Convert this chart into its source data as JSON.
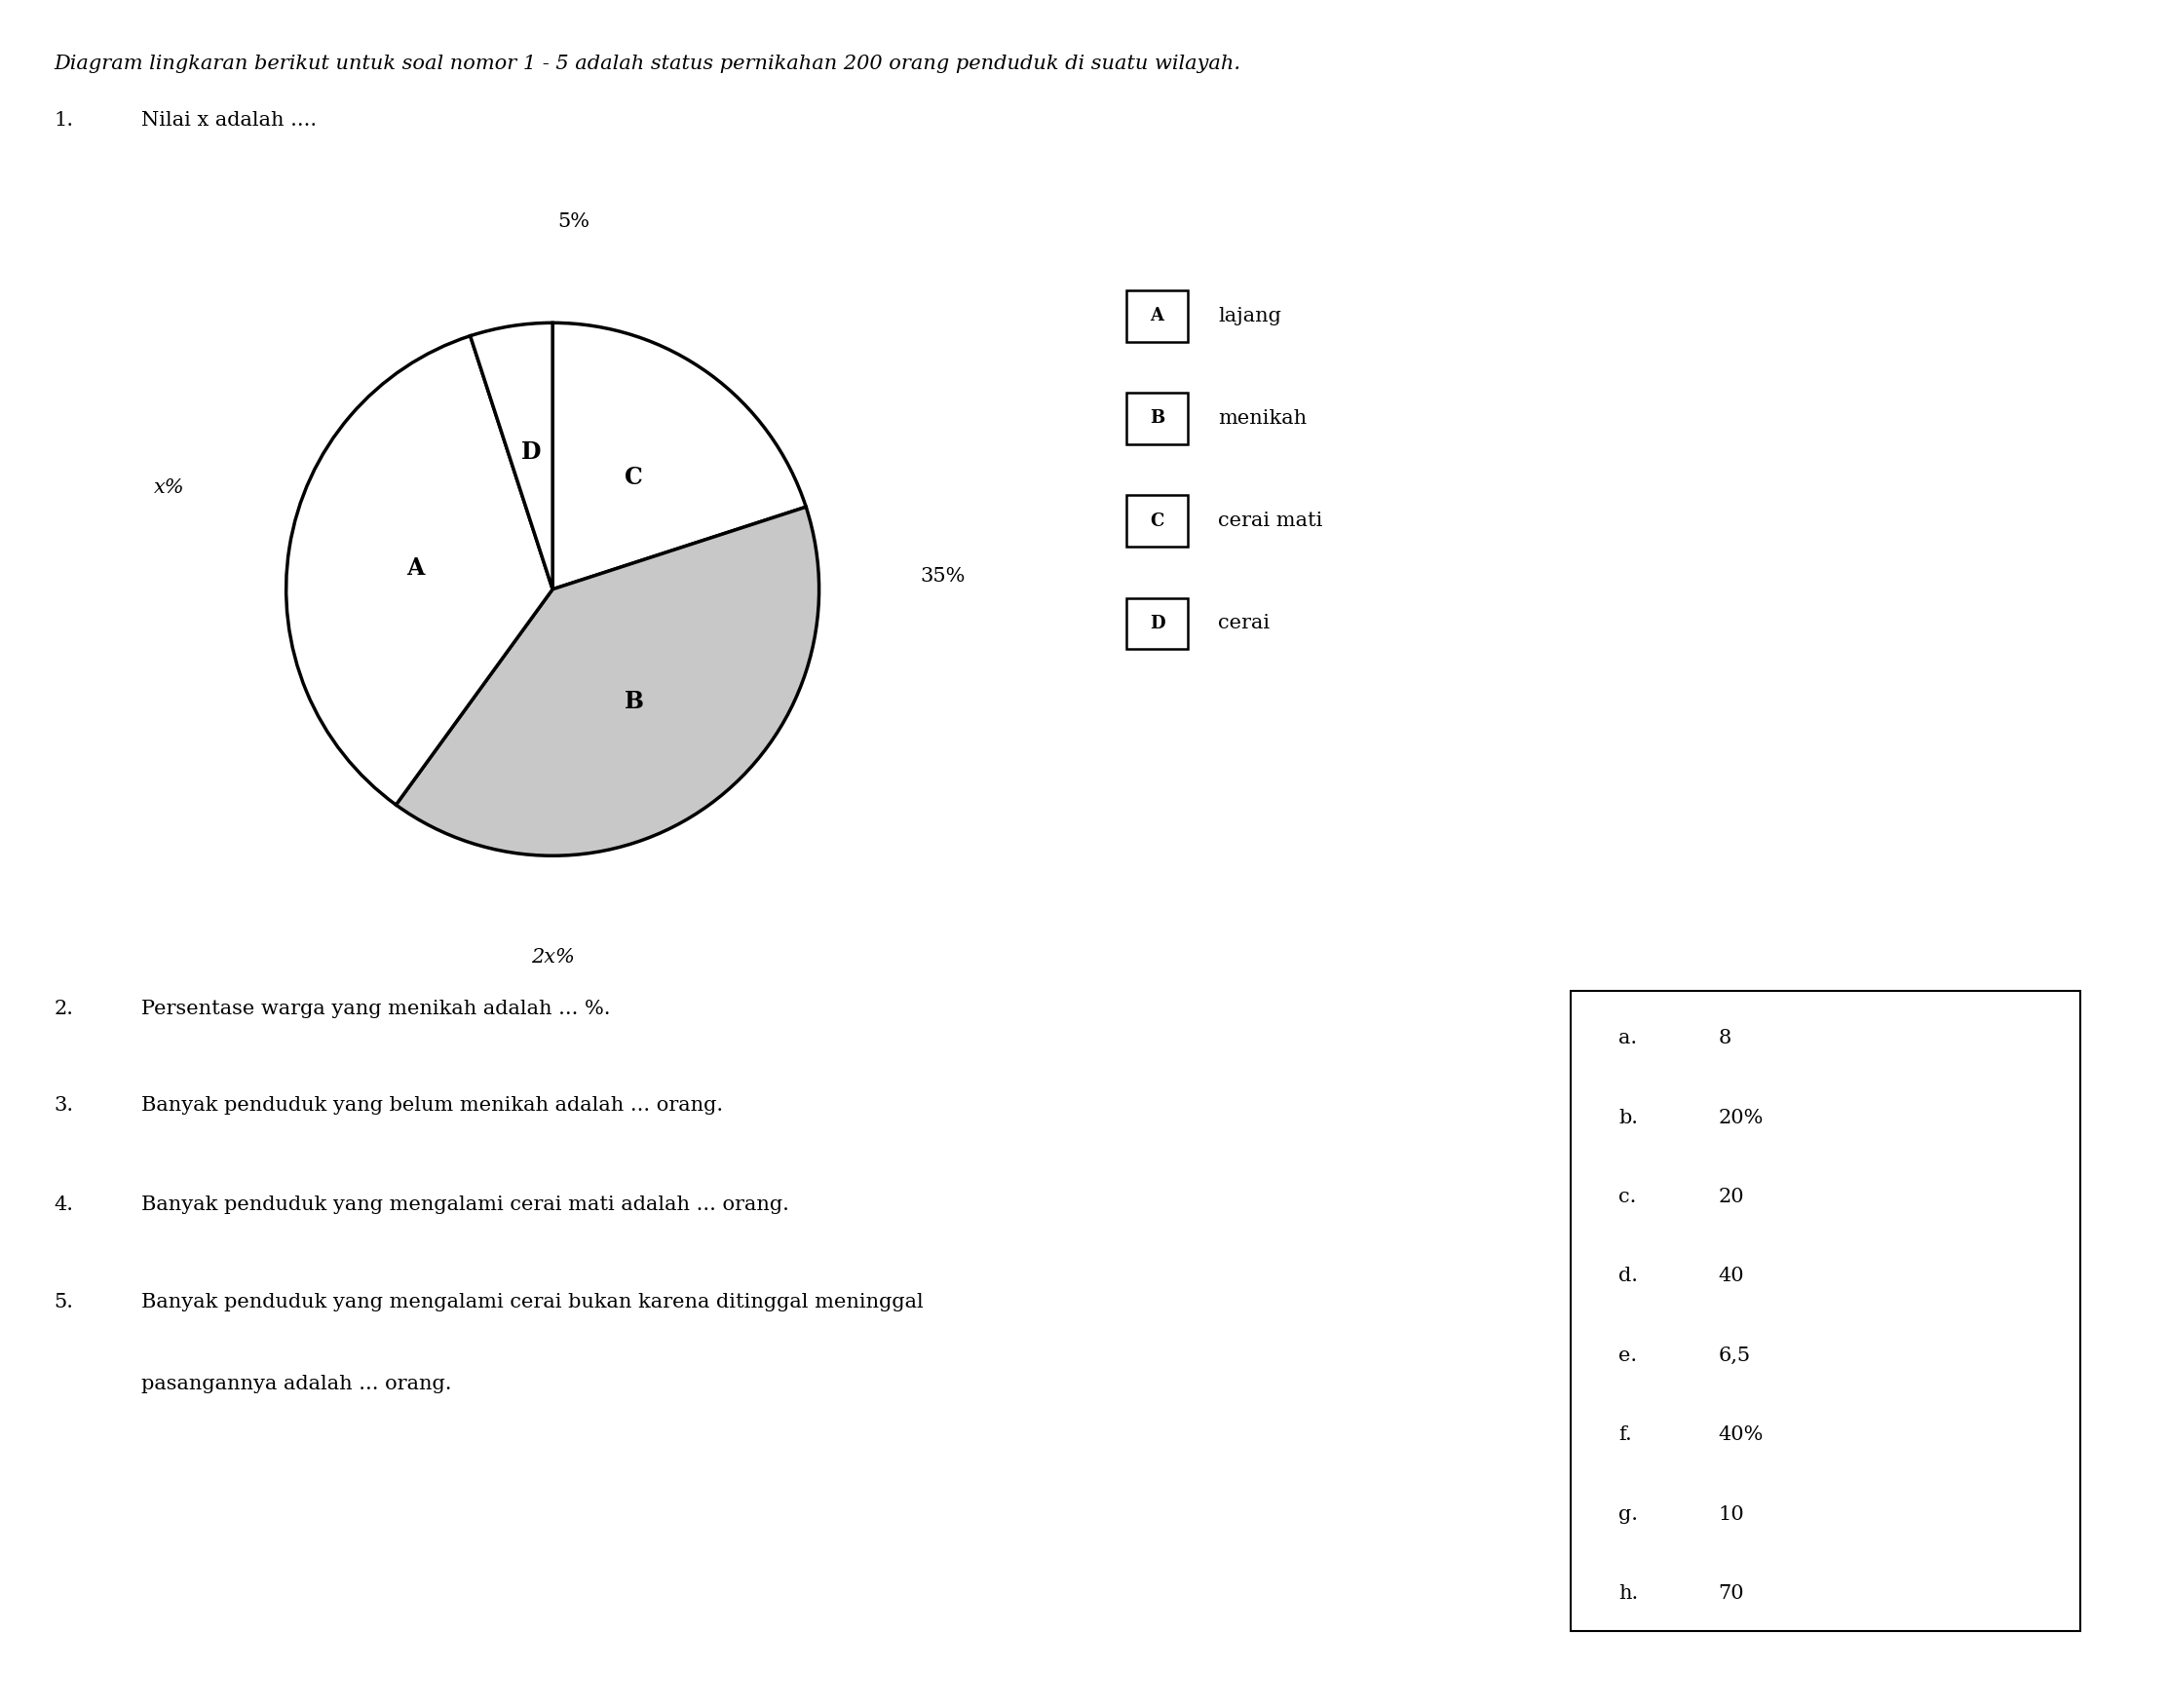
{
  "title": "Diagram lingkaran berikut untuk soal nomor 1 - 5 adalah status pernikahan 200 orang penduduk di suatu wilayah.",
  "question1_num": "1.",
  "question1_text": "Nilai x adalah ....",
  "wedge_sizes": [
    20,
    40,
    35,
    5
  ],
  "wedge_colors": [
    "#ffffff",
    "#c8c8c8",
    "#ffffff",
    "#ffffff"
  ],
  "wedge_labels_internal": [
    "C",
    "B",
    "A",
    "D"
  ],
  "outside_labels": [
    "x%",
    "2x%",
    "35%",
    "5%"
  ],
  "outside_label_italic": [
    true,
    true,
    false,
    false
  ],
  "legend_labels": [
    "A",
    "B",
    "C",
    "D"
  ],
  "legend_descriptions": [
    "lajang",
    "menikah",
    "cerai mati",
    "cerai"
  ],
  "questions": [
    "2.",
    "3.",
    "4.",
    "5."
  ],
  "question_texts": [
    "Persentase warga yang menikah adalah ... %.",
    "Banyak penduduk yang belum menikah adalah ... orang.",
    "Banyak penduduk yang mengalami cerai mati adalah ... orang.",
    "Banyak penduduk yang mengalami cerai bukan karena ditinggal meninggal"
  ],
  "question5_line2": "pasangannya adalah ... orang.",
  "answers": [
    [
      "a.",
      "8"
    ],
    [
      "b.",
      "20%"
    ],
    [
      "c.",
      "20"
    ],
    [
      "d.",
      "40"
    ],
    [
      "e.",
      "6,5"
    ],
    [
      "f.",
      "40%"
    ],
    [
      "g.",
      "10"
    ],
    [
      "h.",
      "70"
    ]
  ],
  "bg_color": "#ffffff",
  "text_color": "#000000",
  "fontsize_title": 15,
  "fontsize_q1": 15,
  "fontsize_question": 15,
  "fontsize_answer": 15,
  "fontsize_pie_label": 17,
  "fontsize_pie_outside": 15,
  "fontsize_legend": 15
}
